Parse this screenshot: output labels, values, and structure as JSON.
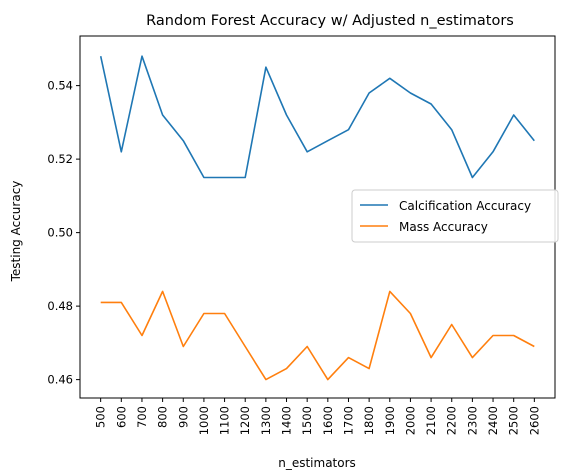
{
  "chart_data": {
    "type": "line",
    "title": "Random Forest Accuracy w/ Adjusted n_estimators",
    "xlabel": "n_estimators",
    "ylabel": "Testing Accuracy",
    "x": [
      500,
      600,
      700,
      800,
      900,
      1000,
      1100,
      1200,
      1300,
      1400,
      1500,
      1600,
      1700,
      1800,
      1900,
      2000,
      2100,
      2200,
      2300,
      2400,
      2500,
      2600
    ],
    "xlim": [
      400,
      2700
    ],
    "ylim": [
      0.455,
      0.5535
    ],
    "yticks": [
      0.46,
      0.48,
      0.5,
      0.52,
      0.54
    ],
    "ytick_labels": [
      "0.46",
      "0.48",
      "0.50",
      "0.52",
      "0.54"
    ],
    "grid": false,
    "legend_position": "center-right",
    "series": [
      {
        "name": "Calcification Accuracy",
        "color": "#1f77b4",
        "values": [
          0.548,
          0.522,
          0.548,
          0.532,
          0.525,
          0.515,
          0.515,
          0.515,
          0.545,
          0.532,
          0.522,
          0.525,
          0.528,
          0.538,
          0.542,
          0.538,
          0.535,
          0.528,
          0.515,
          0.522,
          0.532,
          0.525
        ]
      },
      {
        "name": "Mass Accuracy",
        "color": "#ff7f0e",
        "values": [
          0.481,
          0.481,
          0.472,
          0.484,
          0.469,
          0.478,
          0.478,
          0.469,
          0.46,
          0.463,
          0.469,
          0.46,
          0.466,
          0.463,
          0.484,
          0.478,
          0.466,
          0.475,
          0.466,
          0.472,
          0.472,
          0.469
        ]
      }
    ]
  }
}
